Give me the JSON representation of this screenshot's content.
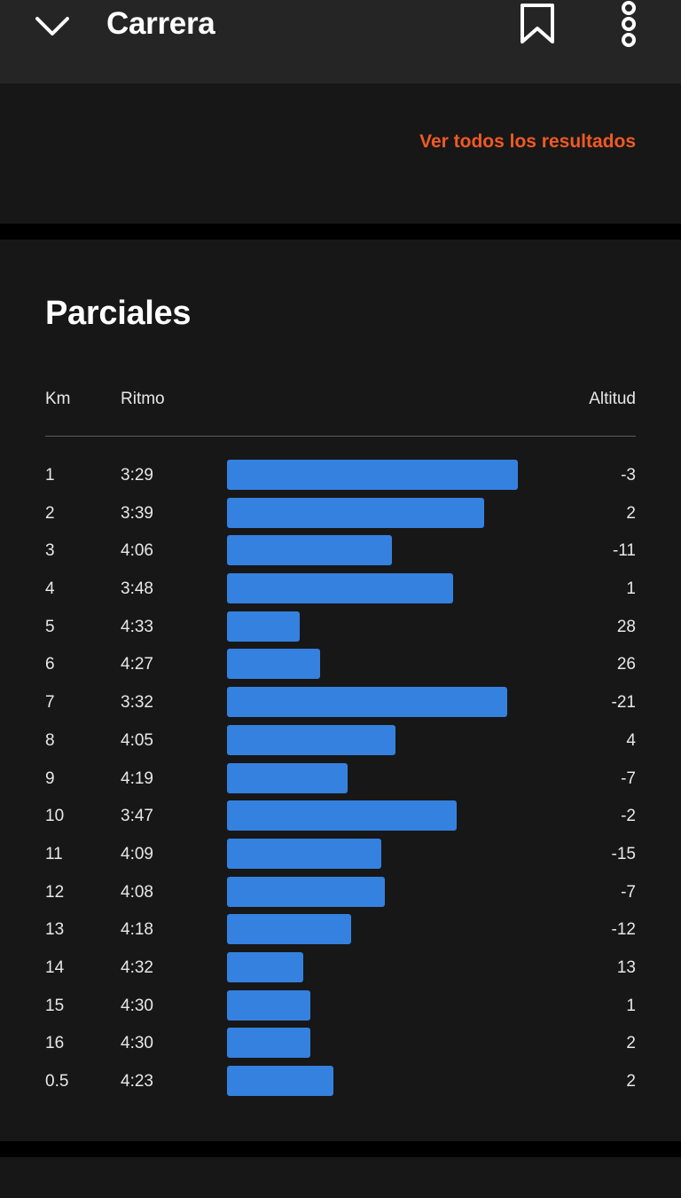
{
  "header": {
    "title": "Carrera",
    "back_icon": "chevron-down-icon",
    "bookmark_icon": "bookmark-icon",
    "more_icon": "more-vertical-icon"
  },
  "results": {
    "link_label": "Ver todos los resultados",
    "link_color": "#f05a24"
  },
  "splits": {
    "title": "Parciales",
    "columns": {
      "km": "Km",
      "pace": "Ritmo",
      "altitude": "Altitud"
    },
    "bar_color": "#3581e0",
    "rows": [
      {
        "km": "1",
        "pace": "3:29",
        "altitude": "-3"
      },
      {
        "km": "2",
        "pace": "3:39",
        "altitude": "2"
      },
      {
        "km": "3",
        "pace": "4:06",
        "altitude": "-11"
      },
      {
        "km": "4",
        "pace": "3:48",
        "altitude": "1"
      },
      {
        "km": "5",
        "pace": "4:33",
        "altitude": "28"
      },
      {
        "km": "6",
        "pace": "4:27",
        "altitude": "26"
      },
      {
        "km": "7",
        "pace": "3:32",
        "altitude": "-21"
      },
      {
        "km": "8",
        "pace": "4:05",
        "altitude": "4"
      },
      {
        "km": "9",
        "pace": "4:19",
        "altitude": "-7"
      },
      {
        "km": "10",
        "pace": "3:47",
        "altitude": "-2"
      },
      {
        "km": "11",
        "pace": "4:09",
        "altitude": "-15"
      },
      {
        "km": "12",
        "pace": "4:08",
        "altitude": "-7"
      },
      {
        "km": "13",
        "pace": "4:18",
        "altitude": "-12"
      },
      {
        "km": "14",
        "pace": "4:32",
        "altitude": "13"
      },
      {
        "km": "15",
        "pace": "4:30",
        "altitude": "1"
      },
      {
        "km": "16",
        "pace": "4:30",
        "altitude": "2"
      },
      {
        "km": "0.5",
        "pace": "4:23",
        "altitude": "2"
      }
    ]
  }
}
